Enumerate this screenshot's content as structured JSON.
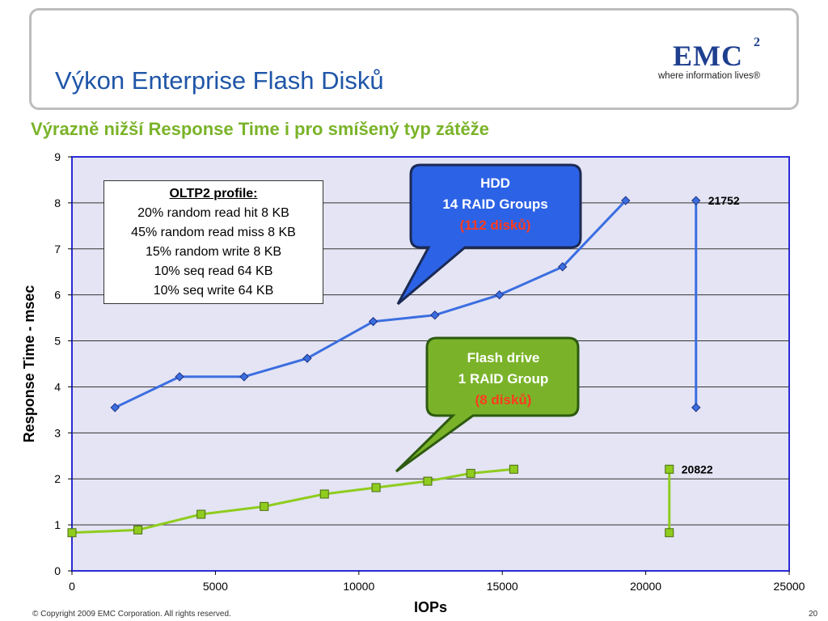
{
  "slide": {
    "title": "Výkon Enterprise Flash Disků",
    "subtitle": "Výrazně nižší Response Time i pro smíšený typ zátěže",
    "footer": "© Copyright 2009 EMC Corporation. All rights reserved.",
    "page_number": "20"
  },
  "logo": {
    "name": "EMC",
    "superscript": "2",
    "tagline": "where information lives®"
  },
  "profile": {
    "title": "OLTP2 profile:",
    "lines": [
      "20% random read hit 8 KB",
      "45% random read miss 8 KB",
      "15% random write 8 KB",
      "10% seq read 64 KB",
      "10% seq write 64 KB"
    ]
  },
  "callouts": {
    "hdd": {
      "line1": "HDD",
      "line2": "14 RAID Groups",
      "line3": "(112 disků)",
      "color": "#2c62e6"
    },
    "flash": {
      "line1": "Flash drive",
      "line2": "1 RAID Group",
      "line3": "(8 disků)",
      "color": "#7ab329"
    }
  },
  "chart_data": {
    "type": "line",
    "xlabel": "IOPs",
    "ylabel": "Response Time - msec",
    "xlim": [
      0,
      25000
    ],
    "ylim": [
      0,
      9
    ],
    "x_ticks": [
      0,
      5000,
      10000,
      15000,
      20000,
      25000
    ],
    "y_ticks": [
      0,
      1,
      2,
      3,
      4,
      5,
      6,
      7,
      8,
      9
    ],
    "grid": "horizontal",
    "series": [
      {
        "name": "HDD",
        "color": "#3b6ee0",
        "marker": "diamond",
        "x": [
          1500,
          3750,
          6000,
          8200,
          10500,
          12650,
          14900,
          17100,
          19300
        ],
        "y": [
          3.55,
          4.22,
          4.22,
          4.62,
          5.42,
          5.56,
          6.0,
          6.61,
          8.05
        ]
      },
      {
        "name": "Flash drive",
        "color": "#8fcc1e",
        "marker": "square",
        "x": [
          0,
          2300,
          4500,
          6700,
          8800,
          10600,
          12400,
          13900,
          15400
        ],
        "y": [
          0.83,
          0.89,
          1.23,
          1.4,
          1.67,
          1.81,
          1.95,
          2.12,
          2.21
        ]
      }
    ],
    "ranges": [
      {
        "x": 21752,
        "y_low": 3.55,
        "y_high": 8.05,
        "label": "21752",
        "color": "#3b6ee0",
        "marker": "diamond"
      },
      {
        "x": 20822,
        "y_low": 0.83,
        "y_high": 2.21,
        "label": "20822",
        "color": "#8fcc1e",
        "marker": "square"
      }
    ]
  }
}
